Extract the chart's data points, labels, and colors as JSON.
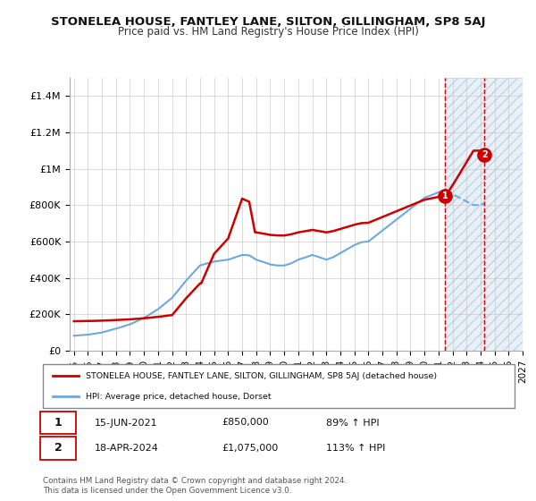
{
  "title": "STONELEA HOUSE, FANTLEY LANE, SILTON, GILLINGHAM, SP8 5AJ",
  "subtitle": "Price paid vs. HM Land Registry's House Price Index (HPI)",
  "ylabel_ticks": [
    "£0",
    "£200K",
    "£400K",
    "£600K",
    "£800K",
    "£1M",
    "£1.2M",
    "£1.4M"
  ],
  "ytick_values": [
    0,
    200000,
    400000,
    600000,
    800000,
    1000000,
    1200000,
    1400000
  ],
  "ylim": [
    0,
    1500000
  ],
  "xlim_start": 1995,
  "xlim_end": 2027,
  "xticks": [
    1995,
    1996,
    1997,
    1998,
    1999,
    2000,
    2001,
    2002,
    2003,
    2004,
    2005,
    2006,
    2007,
    2008,
    2009,
    2010,
    2011,
    2012,
    2013,
    2014,
    2015,
    2016,
    2017,
    2018,
    2019,
    2020,
    2021,
    2022,
    2023,
    2024,
    2025,
    2026,
    2027
  ],
  "hpi_color": "#6fa8dc",
  "price_color": "#cc0000",
  "marker1_date": 2021.45,
  "marker1_price": 850000,
  "marker2_date": 2024.29,
  "marker2_price": 1075000,
  "shade_x1": 2021.45,
  "shade_x2": 2027,
  "annotation1": [
    "1",
    "15-JUN-2021",
    "£850,000",
    "89% ↑ HPI"
  ],
  "annotation2": [
    "2",
    "18-APR-2024",
    "£1,075,000",
    "113% ↑ HPI"
  ],
  "legend_line1": "STONELEA HOUSE, FANTLEY LANE, SILTON, GILLINGHAM, SP8 5AJ (detached house)",
  "legend_line2": "HPI: Average price, detached house, Dorset",
  "footnote": "Contains HM Land Registry data © Crown copyright and database right 2024.\nThis data is licensed under the Open Government Licence v3.0.",
  "background_color": "#ffffff",
  "plot_bg_color": "#ffffff",
  "grid_color": "#cccccc",
  "price_x": [
    1995.0,
    2001.917,
    2004.0,
    2007.917,
    2021.45,
    2024.29
  ],
  "price_y": [
    162000,
    195000,
    370000,
    650000,
    850000,
    1075000
  ],
  "shade_color": "#e8f0f8",
  "vline_color": "#cc0000"
}
